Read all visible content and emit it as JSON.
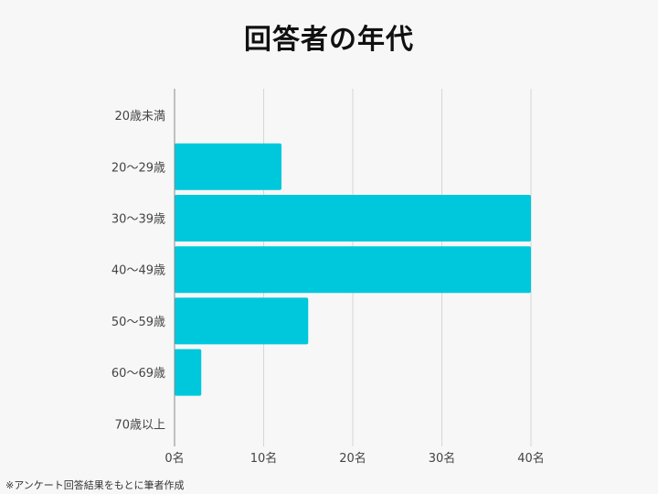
{
  "title": "回答者の年代",
  "note": "※アンケート回答結果をもとに筆者作成",
  "colors": {
    "bar": "#00c8dc",
    "grid": "#d6d6d6",
    "axis": "#888888"
  },
  "chart_data": {
    "type": "bar",
    "orientation": "horizontal",
    "categories": [
      "20歳未満",
      "20～29歳",
      "30～39歳",
      "40～49歳",
      "50～59歳",
      "60～69歳",
      "70歳以上"
    ],
    "values": [
      0,
      12,
      40,
      40,
      15,
      3,
      0
    ],
    "xticks": [
      "0名",
      "10名",
      "20名",
      "30名",
      "40名"
    ],
    "xlim": [
      0,
      40
    ],
    "grid": true
  }
}
